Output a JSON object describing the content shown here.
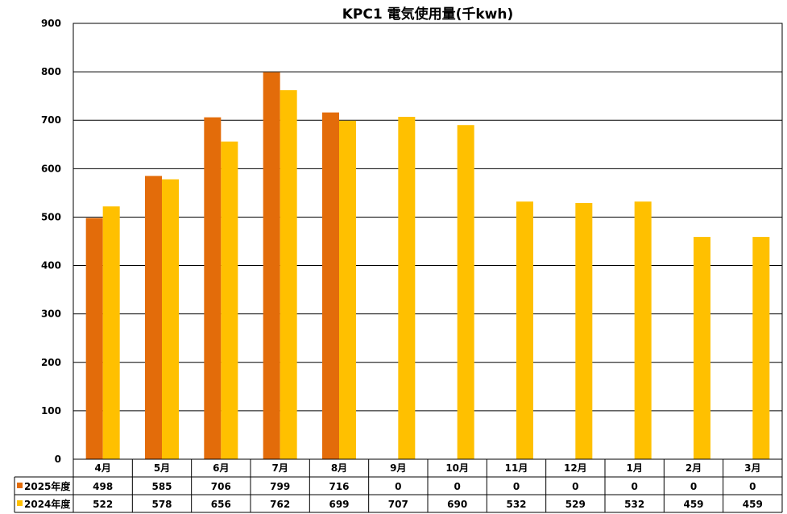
{
  "chart_data": {
    "type": "bar",
    "title": "KPC1  電気使用量(千kwh)",
    "categories": [
      "4月",
      "5月",
      "6月",
      "7月",
      "8月",
      "9月",
      "10月",
      "11月",
      "12月",
      "1月",
      "2月",
      "3月"
    ],
    "ylim": [
      0,
      900
    ],
    "yticks": [
      0,
      100,
      200,
      300,
      400,
      500,
      600,
      700,
      800,
      900
    ],
    "grid": true,
    "legend": "data-table-left",
    "series": [
      {
        "name": "2025年度",
        "color": "#E36C0A",
        "values": [
          498,
          585,
          706,
          799,
          716,
          0,
          0,
          0,
          0,
          0,
          0,
          0
        ]
      },
      {
        "name": "2024年度",
        "color": "#FFC000",
        "values": [
          522,
          578,
          656,
          762,
          699,
          707,
          690,
          532,
          529,
          532,
          459,
          459
        ]
      }
    ]
  }
}
